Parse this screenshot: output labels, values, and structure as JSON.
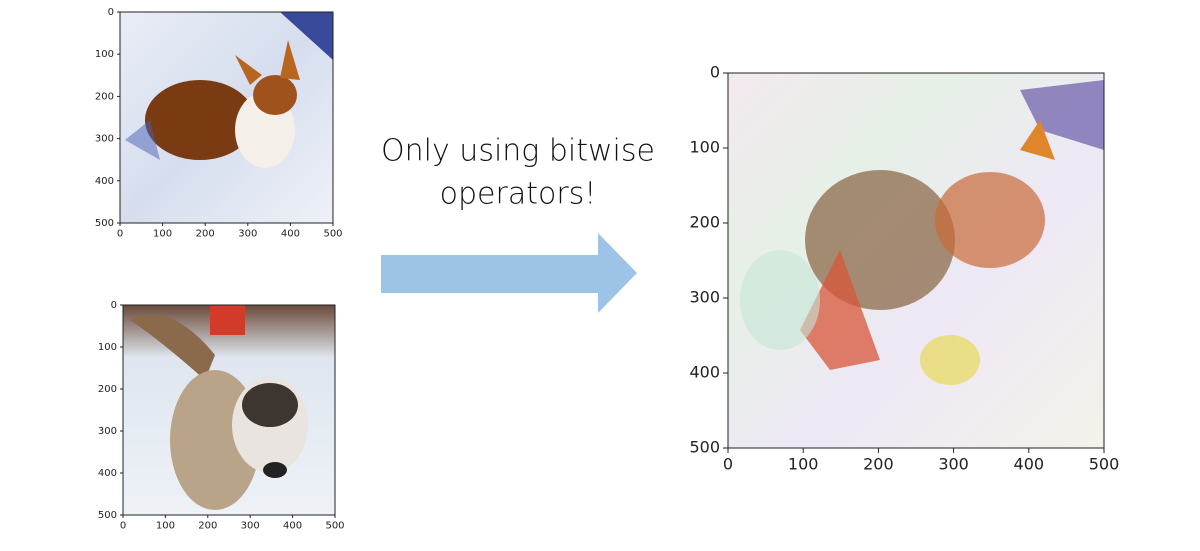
{
  "caption": [
    "Only using bitwise",
    "operators!"
  ],
  "panels": [
    {
      "xlim": [
        0,
        500
      ],
      "ylim": [
        0,
        500
      ],
      "xticks": [
        0,
        100,
        200,
        300,
        400,
        500
      ],
      "yticks": [
        0,
        100,
        200,
        300,
        400,
        500
      ]
    },
    {
      "xlim": [
        0,
        500
      ],
      "ylim": [
        0,
        500
      ],
      "xticks": [
        0,
        100,
        200,
        300,
        400,
        500
      ],
      "yticks": [
        0,
        100,
        200,
        300,
        400,
        500
      ]
    },
    {
      "xlim": [
        0,
        500
      ],
      "ylim": [
        0,
        500
      ],
      "xticks": [
        0,
        100,
        200,
        300,
        400,
        500
      ],
      "yticks": [
        0,
        100,
        200,
        300,
        400,
        500
      ]
    }
  ]
}
